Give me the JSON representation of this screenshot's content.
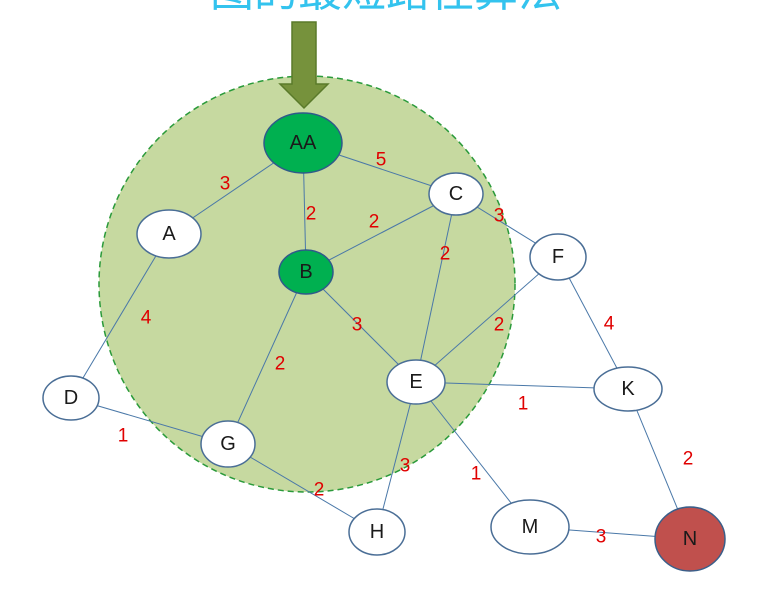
{
  "title": "图的最短路径算法",
  "colors": {
    "title": "#33c3ee",
    "region_fill": "#c6d9a0",
    "region_border": "#2a9a3a",
    "arrow": "#76923c",
    "visited_node": "#00b050",
    "target_node": "#c0504d",
    "node_default": "#ffffff",
    "edge": "#4a78a8",
    "weight_text": "#e00000"
  },
  "nodes": [
    {
      "id": "AA",
      "label": "AA",
      "state": "visited"
    },
    {
      "id": "A",
      "label": "A",
      "state": "default"
    },
    {
      "id": "B",
      "label": "B",
      "state": "visited"
    },
    {
      "id": "C",
      "label": "C",
      "state": "default"
    },
    {
      "id": "F",
      "label": "F",
      "state": "default"
    },
    {
      "id": "D",
      "label": "D",
      "state": "default"
    },
    {
      "id": "G",
      "label": "G",
      "state": "default"
    },
    {
      "id": "E",
      "label": "E",
      "state": "default"
    },
    {
      "id": "K",
      "label": "K",
      "state": "default"
    },
    {
      "id": "H",
      "label": "H",
      "state": "default"
    },
    {
      "id": "M",
      "label": "M",
      "state": "default"
    },
    {
      "id": "N",
      "label": "N",
      "state": "target"
    }
  ],
  "edges": [
    {
      "from": "AA",
      "to": "A",
      "weight": "3"
    },
    {
      "from": "AA",
      "to": "C",
      "weight": "5"
    },
    {
      "from": "AA",
      "to": "B",
      "weight": "2"
    },
    {
      "from": "B",
      "to": "C",
      "weight": "2"
    },
    {
      "from": "C",
      "to": "F",
      "weight": "3"
    },
    {
      "from": "C",
      "to": "E",
      "weight": "2"
    },
    {
      "from": "B",
      "to": "E",
      "weight": "3"
    },
    {
      "from": "F",
      "to": "E",
      "weight": "2"
    },
    {
      "from": "A",
      "to": "D",
      "weight": "4"
    },
    {
      "from": "B",
      "to": "G",
      "weight": "2"
    },
    {
      "from": "F",
      "to": "K",
      "weight": "4"
    },
    {
      "from": "E",
      "to": "K",
      "weight": "1"
    },
    {
      "from": "D",
      "to": "G",
      "weight": "1"
    },
    {
      "from": "G",
      "to": "H",
      "weight": "2"
    },
    {
      "from": "E",
      "to": "H",
      "weight": "3"
    },
    {
      "from": "E",
      "to": "M",
      "weight": "1"
    },
    {
      "from": "K",
      "to": "N",
      "weight": "2"
    },
    {
      "from": "M",
      "to": "N",
      "weight": "3"
    }
  ]
}
